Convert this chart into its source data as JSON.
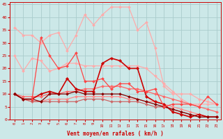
{
  "title": "",
  "xlabel": "Vent moyen/en rafales ( km/h )",
  "ylabel": "",
  "xlim": [
    -0.5,
    23.5
  ],
  "ylim": [
    0,
    46
  ],
  "yticks": [
    0,
    5,
    10,
    15,
    20,
    25,
    30,
    35,
    40,
    45
  ],
  "xticks": [
    0,
    1,
    2,
    3,
    4,
    5,
    6,
    7,
    8,
    9,
    10,
    11,
    12,
    13,
    14,
    15,
    16,
    17,
    18,
    19,
    20,
    21,
    22,
    23
  ],
  "bg_color": "#cce8e8",
  "grid_color": "#aacccc",
  "series": [
    {
      "x": [
        0,
        1,
        2,
        3,
        4,
        5,
        6,
        7,
        8,
        9,
        10,
        11,
        12,
        13,
        14,
        15,
        16,
        17,
        18,
        19,
        20,
        21,
        22,
        23
      ],
      "y": [
        36,
        33,
        33,
        30,
        33,
        34,
        27,
        33,
        41,
        37,
        41,
        44,
        44,
        44,
        35,
        38,
        28,
        13,
        10,
        10,
        10,
        8,
        7,
        6
      ],
      "color": "#ffaaaa",
      "lw": 0.9,
      "marker": "D",
      "ms": 2.0
    },
    {
      "x": [
        0,
        1,
        2,
        3,
        4,
        5,
        6,
        7,
        8,
        9,
        10,
        11,
        12,
        13,
        14,
        15,
        16,
        17,
        18,
        19,
        20,
        21,
        22,
        23
      ],
      "y": [
        25,
        19,
        24,
        23,
        19,
        20,
        22,
        22,
        21,
        21,
        21,
        21,
        21,
        21,
        21,
        20,
        17,
        14,
        11,
        8,
        6,
        6,
        6,
        6
      ],
      "color": "#ffaaaa",
      "lw": 0.9,
      "marker": "D",
      "ms": 2.0
    },
    {
      "x": [
        0,
        1,
        2,
        3,
        4,
        5,
        6,
        7,
        8,
        9,
        10,
        11,
        12,
        13,
        14,
        15,
        16,
        17,
        18,
        19,
        20,
        21,
        22,
        23
      ],
      "y": [
        10,
        9,
        9,
        9,
        10,
        10,
        11,
        11,
        12,
        12,
        13,
        13,
        13,
        12,
        12,
        11,
        10,
        9,
        8,
        7,
        6,
        5,
        4,
        3
      ],
      "color": "#ff6666",
      "lw": 0.9,
      "marker": "D",
      "ms": 2.0
    },
    {
      "x": [
        0,
        1,
        2,
        3,
        4,
        5,
        6,
        7,
        8,
        9,
        10,
        11,
        12,
        13,
        14,
        15,
        16,
        17,
        18,
        19,
        20,
        21,
        22,
        23
      ],
      "y": [
        10,
        8,
        7,
        7,
        8,
        8,
        8,
        9,
        9,
        9,
        9,
        9,
        9,
        8,
        8,
        7,
        7,
        6,
        5,
        4,
        3,
        2,
        1,
        1
      ],
      "color": "#ff8888",
      "lw": 0.9,
      "marker": "D",
      "ms": 2.0
    },
    {
      "x": [
        0,
        1,
        2,
        3,
        4,
        5,
        6,
        7,
        8,
        9,
        10,
        11,
        12,
        13,
        14,
        15,
        16,
        17,
        18,
        19,
        20,
        21,
        22,
        23
      ],
      "y": [
        10,
        8,
        7,
        7,
        7,
        7,
        7,
        7,
        8,
        8,
        8,
        7,
        7,
        7,
        7,
        6,
        5,
        5,
        4,
        3,
        2,
        1,
        1,
        1
      ],
      "color": "#cc6666",
      "lw": 0.9,
      "marker": "D",
      "ms": 2.0
    },
    {
      "x": [
        0,
        1,
        2,
        3,
        4,
        5,
        6,
        7,
        8,
        9,
        10,
        11,
        12,
        13,
        14,
        15,
        16,
        17,
        18,
        19,
        20,
        21,
        22,
        23
      ],
      "y": [
        10,
        8,
        8,
        10,
        11,
        10,
        16,
        12,
        11,
        11,
        22,
        24,
        23,
        20,
        20,
        9,
        7,
        6,
        3,
        2,
        1,
        2,
        1,
        1
      ],
      "color": "#cc0000",
      "lw": 1.2,
      "marker": "D",
      "ms": 2.2
    },
    {
      "x": [
        0,
        1,
        2,
        3,
        4,
        5,
        6,
        7,
        8,
        9,
        10,
        11,
        12,
        13,
        14,
        15,
        16,
        17,
        18,
        19,
        20,
        21,
        22,
        23
      ],
      "y": [
        10,
        8,
        8,
        7,
        10,
        10,
        10,
        11,
        10,
        10,
        10,
        10,
        10,
        9,
        8,
        7,
        6,
        5,
        4,
        3,
        2,
        1,
        1,
        1
      ],
      "color": "#880000",
      "lw": 0.9,
      "marker": "D",
      "ms": 2.0
    },
    {
      "x": [
        2,
        3,
        4,
        5,
        6,
        7,
        8,
        9,
        10,
        11,
        12,
        13,
        14,
        15,
        16,
        17,
        18,
        19,
        20,
        21,
        22,
        23
      ],
      "y": [
        8,
        32,
        25,
        20,
        21,
        26,
        15,
        15,
        16,
        12,
        14,
        14,
        11,
        11,
        12,
        5,
        6,
        6,
        6,
        5,
        9,
        6
      ],
      "color": "#ff4444",
      "lw": 0.9,
      "marker": "D",
      "ms": 2.0
    }
  ]
}
